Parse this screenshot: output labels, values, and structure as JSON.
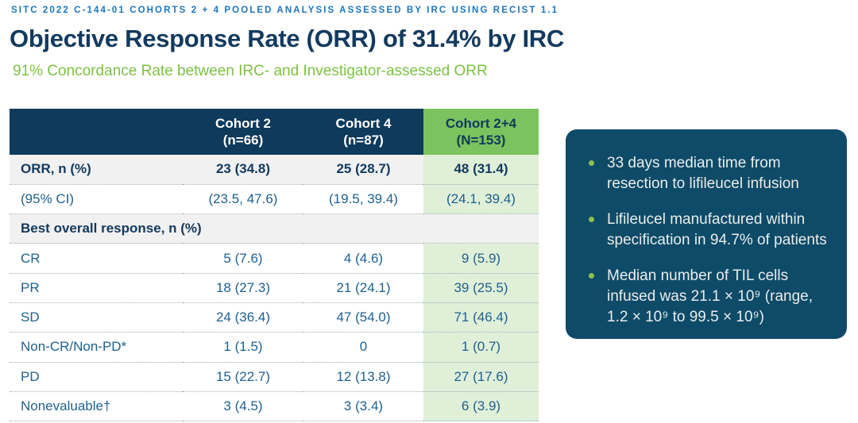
{
  "kicker": "SITC 2022 C-144-01 COHORTS 2 + 4 POOLED ANALYSIS ASSESSED BY IRC USING RECIST 1.1",
  "title": "Objective Response Rate (ORR) of 31.4% by IRC",
  "subtitle": "91% Concordance Rate between IRC- and Investigator-assessed ORR",
  "table": {
    "columns": [
      {
        "title": "Cohort 2",
        "sub": "(n=66)",
        "highlight": false
      },
      {
        "title": "Cohort 4",
        "sub": "(n=87)",
        "highlight": false
      },
      {
        "title": "Cohort 2+4",
        "sub": "(N=153)",
        "highlight": true
      }
    ],
    "rows": [
      {
        "label": "ORR, n (%)",
        "values": [
          "23 (34.8)",
          "25 (28.7)",
          "48 (31.4)"
        ],
        "kind": "emphasis"
      },
      {
        "label": "(95% CI)",
        "values": [
          "(23.5, 47.6)",
          "(19.5, 39.4)",
          "(24.1, 39.4)"
        ],
        "kind": "plain"
      },
      {
        "label": "Best overall response, n (%)",
        "values": [],
        "kind": "section"
      },
      {
        "label": "CR",
        "values": [
          "5 (7.6)",
          "4 (4.6)",
          "9 (5.9)"
        ],
        "kind": "plain"
      },
      {
        "label": "PR",
        "values": [
          "18 (27.3)",
          "21 (24.1)",
          "39 (25.5)"
        ],
        "kind": "plain"
      },
      {
        "label": "SD",
        "values": [
          "24 (36.4)",
          "47 (54.0)",
          "71 (46.4)"
        ],
        "kind": "plain"
      },
      {
        "label": "Non-CR/Non-PD*",
        "values": [
          "1 (1.5)",
          "0",
          "1 (0.7)"
        ],
        "kind": "plain"
      },
      {
        "label": "PD",
        "values": [
          "15 (22.7)",
          "12 (13.8)",
          "27 (17.6)"
        ],
        "kind": "plain"
      },
      {
        "label": "Nonevaluable†",
        "values": [
          "3 (4.5)",
          "3 (3.4)",
          "6 (3.9)"
        ],
        "kind": "plain"
      }
    ]
  },
  "sidebar": {
    "bullets": [
      "33 days median time from resection to lifileucel infusion",
      "Lifileucel manufactured within specification in 94.7% of patients",
      "Median number of TIL cells infused was 21.1 × 10⁹ (range, 1.2 × 10⁹ to 99.5 × 10⁹)"
    ]
  },
  "colors": {
    "kicker_blue": "#1B75BC",
    "title_navy": "#133A5F",
    "subtitle_green": "#7DC242",
    "header_navy": "#0E3A5C",
    "header_green": "#7CC25E",
    "col_green_light": "#DFEFD8",
    "row_gray": "#F1F1F2",
    "text_blue": "#20618F",
    "text_navy_bold": "#123A5E",
    "dotted_gray": "#9FADB6",
    "sidebar_navy": "#0E4B68",
    "sidebar_text": "#E9EDEC",
    "bullet_green": "#8FBE4F"
  }
}
